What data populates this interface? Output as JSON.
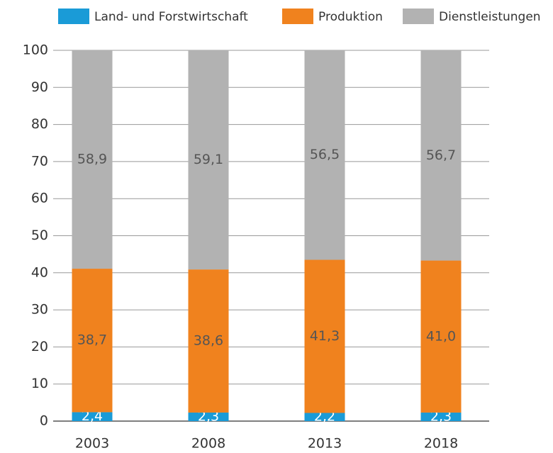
{
  "chart_data": {
    "type": "stacked_bar",
    "categories": [
      "2003",
      "2008",
      "2013",
      "2018"
    ],
    "series": [
      {
        "name": "Land- und Forstwirtschaft",
        "color": "#1a9bd7",
        "values": [
          2.4,
          2.3,
          2.2,
          2.3
        ],
        "value_labels": [
          "2,4",
          "2,3",
          "2,2",
          "2,3"
        ]
      },
      {
        "name": "Produktion",
        "color": "#f0821e",
        "values": [
          38.7,
          38.6,
          41.3,
          41.0
        ],
        "value_labels": [
          "38,7",
          "38,6",
          "41,3",
          "41,0"
        ]
      },
      {
        "name": "Dienstleistungen",
        "color": "#b2b2b2",
        "values": [
          58.9,
          59.1,
          56.5,
          56.7
        ],
        "value_labels": [
          "58,9",
          "59,1",
          "56,5",
          "56,7"
        ]
      }
    ],
    "ylim": [
      0,
      100
    ],
    "yticks": [
      0,
      10,
      20,
      30,
      40,
      50,
      60,
      70,
      80,
      90,
      100
    ],
    "grid": true,
    "legend": "top"
  }
}
